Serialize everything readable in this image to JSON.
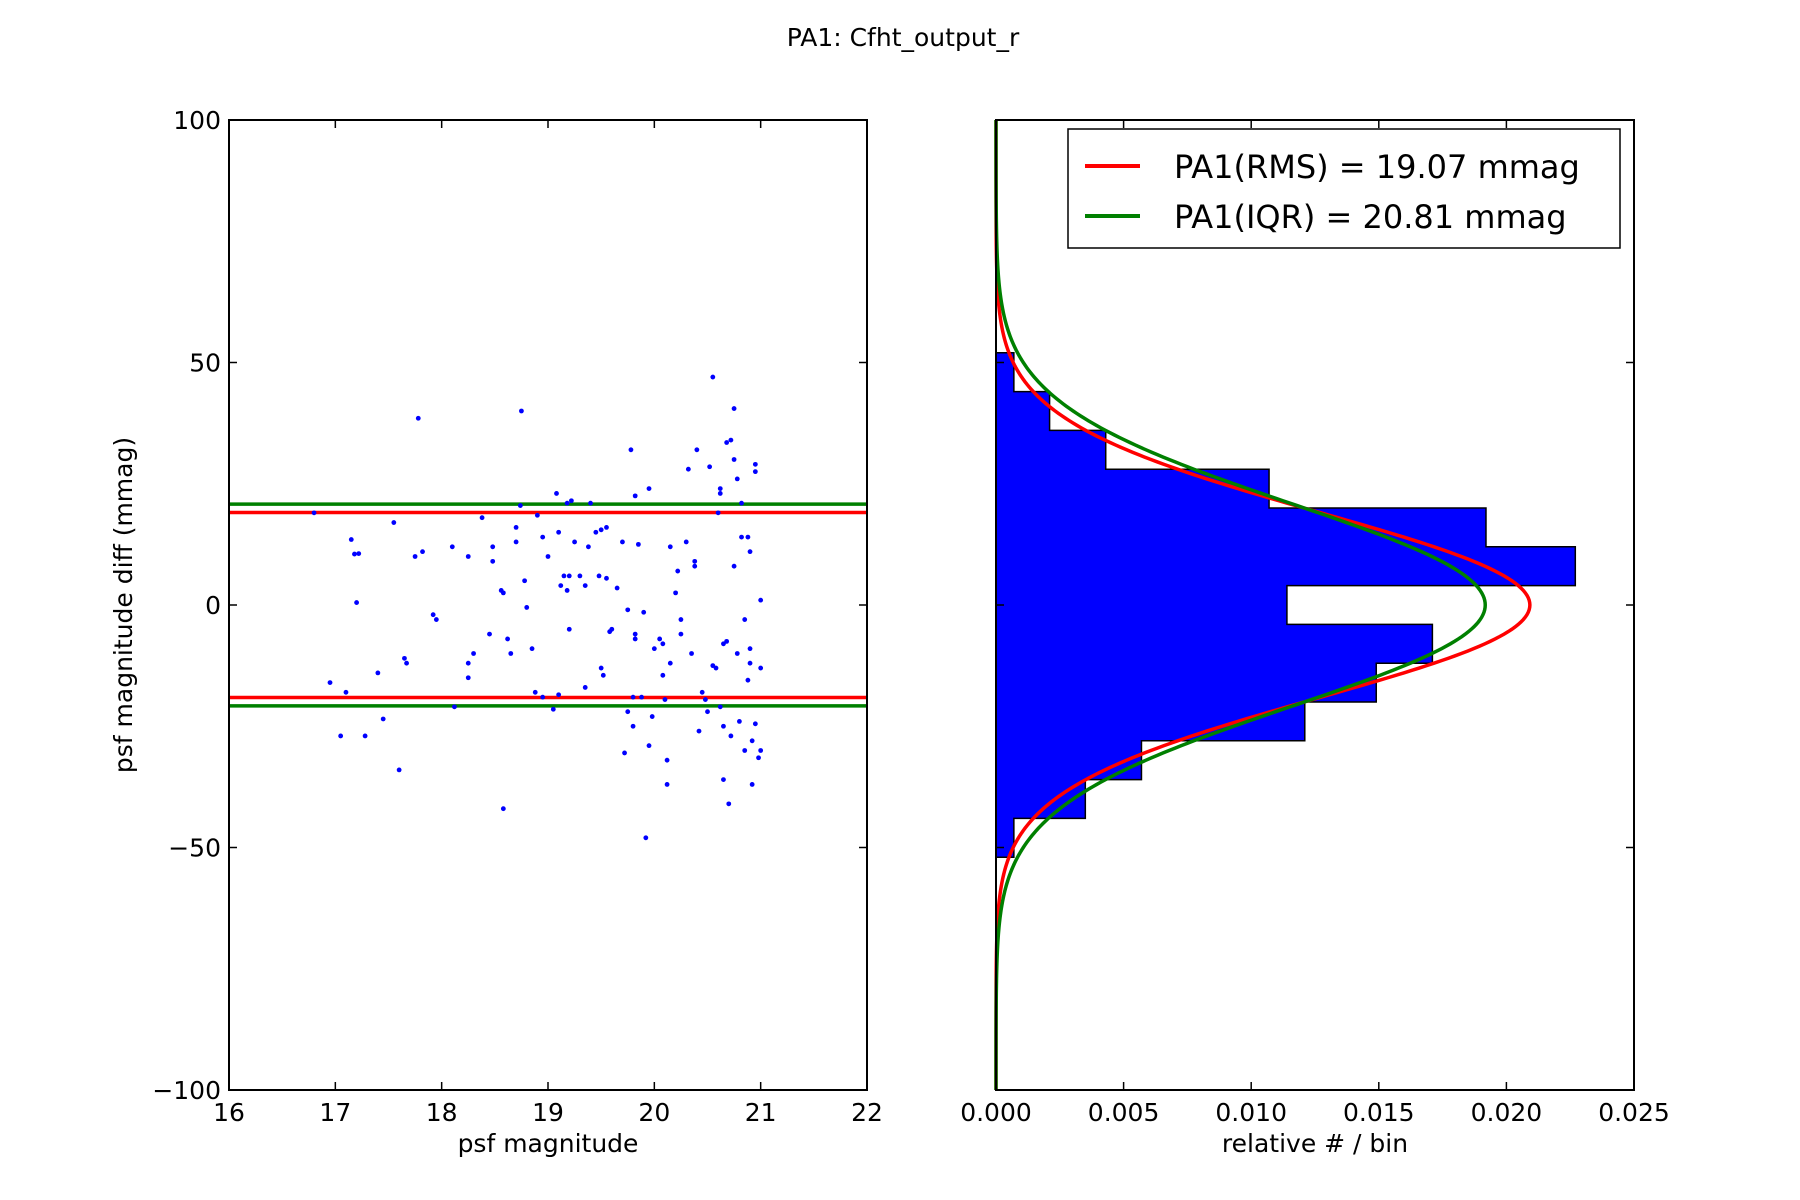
{
  "figure": {
    "suptitle": "PA1: Cfht_output_r"
  },
  "chart_data": [
    {
      "type": "scatter",
      "xlabel": "psf magnitude",
      "ylabel": "psf magnitude diff (mmag)",
      "xlim": [
        16,
        22
      ],
      "ylim": [
        -100,
        100
      ],
      "xticks": [
        16,
        17,
        18,
        19,
        20,
        21,
        22
      ],
      "yticks": [
        -100,
        -50,
        0,
        50,
        100
      ],
      "xtick_labels": [
        "16",
        "17",
        "18",
        "19",
        "20",
        "21",
        "22"
      ],
      "ytick_labels": [
        "−100",
        "−50",
        "0",
        "50",
        "100"
      ],
      "point_color": "#0000ff",
      "hlines": [
        {
          "y": 19.07,
          "color": "#ff0000"
        },
        {
          "y": -19.07,
          "color": "#ff0000"
        },
        {
          "y": 20.81,
          "color": "#008000"
        },
        {
          "y": -20.81,
          "color": "#008000"
        }
      ],
      "points": [
        [
          16.8,
          19
        ],
        [
          16.95,
          -16
        ],
        [
          17.05,
          -27
        ],
        [
          17.1,
          -18
        ],
        [
          17.15,
          13.5
        ],
        [
          17.18,
          10.5
        ],
        [
          17.22,
          10.6
        ],
        [
          17.2,
          0.5
        ],
        [
          17.28,
          -27
        ],
        [
          17.4,
          -14
        ],
        [
          17.45,
          -23.5
        ],
        [
          17.55,
          17
        ],
        [
          17.6,
          -34
        ],
        [
          17.65,
          -11
        ],
        [
          17.67,
          -12
        ],
        [
          17.78,
          38.5
        ],
        [
          17.75,
          10
        ],
        [
          17.82,
          11
        ],
        [
          17.92,
          -2
        ],
        [
          17.95,
          -3
        ],
        [
          18.1,
          12
        ],
        [
          18.12,
          -21
        ],
        [
          18.25,
          10
        ],
        [
          18.25,
          -12
        ],
        [
          18.25,
          -15
        ],
        [
          18.3,
          -10
        ],
        [
          18.38,
          18
        ],
        [
          18.45,
          -6
        ],
        [
          18.48,
          12
        ],
        [
          18.48,
          9
        ],
        [
          18.56,
          3
        ],
        [
          18.58,
          2.5
        ],
        [
          18.58,
          -42
        ],
        [
          18.62,
          -7
        ],
        [
          18.65,
          -10
        ],
        [
          18.7,
          16
        ],
        [
          18.7,
          13
        ],
        [
          18.74,
          20.5
        ],
        [
          18.75,
          40
        ],
        [
          18.78,
          5
        ],
        [
          18.8,
          -0.5
        ],
        [
          18.85,
          -9
        ],
        [
          18.88,
          -18
        ],
        [
          18.9,
          18.5
        ],
        [
          18.95,
          -19
        ],
        [
          18.95,
          14
        ],
        [
          19.0,
          10
        ],
        [
          19.05,
          -21.5
        ],
        [
          19.08,
          23
        ],
        [
          19.1,
          -18.5
        ],
        [
          19.1,
          15
        ],
        [
          19.12,
          4
        ],
        [
          19.15,
          6
        ],
        [
          19.18,
          21
        ],
        [
          19.18,
          3
        ],
        [
          19.2,
          6
        ],
        [
          19.2,
          -5
        ],
        [
          19.22,
          21.5
        ],
        [
          19.25,
          13
        ],
        [
          19.3,
          6
        ],
        [
          19.35,
          4
        ],
        [
          19.35,
          -17
        ],
        [
          19.38,
          12
        ],
        [
          19.4,
          21
        ],
        [
          19.45,
          15
        ],
        [
          19.48,
          6
        ],
        [
          19.5,
          -13
        ],
        [
          19.5,
          15.5
        ],
        [
          19.52,
          -14.5
        ],
        [
          19.55,
          5.5
        ],
        [
          19.55,
          16
        ],
        [
          19.58,
          -5.5
        ],
        [
          19.6,
          -5
        ],
        [
          19.65,
          3.5
        ],
        [
          19.7,
          13
        ],
        [
          19.72,
          -30.5
        ],
        [
          19.75,
          -22
        ],
        [
          19.75,
          -1
        ],
        [
          19.78,
          32
        ],
        [
          19.8,
          -25
        ],
        [
          19.8,
          -19
        ],
        [
          19.82,
          22.5
        ],
        [
          19.82,
          -6
        ],
        [
          19.82,
          -7
        ],
        [
          19.85,
          12.5
        ],
        [
          19.88,
          -19
        ],
        [
          19.9,
          -1.5
        ],
        [
          19.92,
          -48
        ],
        [
          19.95,
          24
        ],
        [
          19.95,
          -29
        ],
        [
          19.98,
          -23
        ],
        [
          20.0,
          -9
        ],
        [
          20.05,
          -7
        ],
        [
          20.08,
          -8
        ],
        [
          20.08,
          -14.5
        ],
        [
          20.1,
          -19.5
        ],
        [
          20.12,
          -32
        ],
        [
          20.12,
          -37
        ],
        [
          20.15,
          12
        ],
        [
          20.15,
          -12
        ],
        [
          20.2,
          2.5
        ],
        [
          20.22,
          7
        ],
        [
          20.25,
          -3
        ],
        [
          20.25,
          -6
        ],
        [
          20.3,
          13
        ],
        [
          20.32,
          28
        ],
        [
          20.35,
          -10
        ],
        [
          20.38,
          9
        ],
        [
          20.38,
          8
        ],
        [
          20.4,
          32
        ],
        [
          20.42,
          -26
        ],
        [
          20.45,
          -18
        ],
        [
          20.48,
          -19.5
        ],
        [
          20.5,
          -22
        ],
        [
          20.52,
          28.5
        ],
        [
          20.55,
          47
        ],
        [
          20.55,
          -12.5
        ],
        [
          20.58,
          -13
        ],
        [
          20.6,
          19
        ],
        [
          20.62,
          24
        ],
        [
          20.62,
          23
        ],
        [
          20.62,
          -21
        ],
        [
          20.65,
          -8
        ],
        [
          20.65,
          -25
        ],
        [
          20.65,
          -36
        ],
        [
          20.68,
          -7.5
        ],
        [
          20.68,
          33.5
        ],
        [
          20.7,
          -41
        ],
        [
          20.72,
          34
        ],
        [
          20.72,
          -27
        ],
        [
          20.75,
          8
        ],
        [
          20.75,
          30
        ],
        [
          20.75,
          40.5
        ],
        [
          20.78,
          -10
        ],
        [
          20.78,
          26
        ],
        [
          20.8,
          -24
        ],
        [
          20.82,
          21
        ],
        [
          20.82,
          14
        ],
        [
          20.85,
          -30
        ],
        [
          20.85,
          -3
        ],
        [
          20.88,
          -15.5
        ],
        [
          20.88,
          14
        ],
        [
          20.9,
          -9
        ],
        [
          20.92,
          -37
        ],
        [
          20.9,
          11
        ],
        [
          20.9,
          -12
        ],
        [
          20.92,
          -28
        ],
        [
          20.95,
          -24.5
        ],
        [
          20.95,
          29
        ],
        [
          20.95,
          27.5
        ],
        [
          20.98,
          -31.5
        ],
        [
          21.0,
          -30
        ],
        [
          21.0,
          1
        ],
        [
          21.0,
          -13
        ]
      ]
    },
    {
      "type": "bar",
      "orientation": "horizontal",
      "xlabel": "relative # / bin",
      "ylabel": "",
      "xlim": [
        0,
        0.025
      ],
      "ylim": [
        -100,
        100
      ],
      "xticks": [
        0.0,
        0.005,
        0.01,
        0.015,
        0.02,
        0.025
      ],
      "xtick_labels": [
        "0.000",
        "0.005",
        "0.010",
        "0.015",
        "0.020",
        "0.025"
      ],
      "bar_color": "#0000ff",
      "bin_edges": [
        -52,
        -44,
        -36,
        -28,
        -20,
        -12,
        -4,
        4,
        12,
        20,
        28,
        36,
        44,
        52
      ],
      "values": [
        0.0007,
        0.0035,
        0.0057,
        0.0121,
        0.0149,
        0.0171,
        0.0114,
        0.0227,
        0.0192,
        0.0107,
        0.0043,
        0.0021,
        0.0007
      ],
      "series": [
        {
          "name": "PA1(RMS) = 19.07 mmag",
          "color": "#ff0000",
          "sigma": 19.07
        },
        {
          "name": "PA1(IQR) = 20.81 mmag",
          "color": "#008000",
          "sigma": 20.81
        }
      ],
      "curve_scale": 1.0,
      "legend_position": "upper right"
    }
  ]
}
